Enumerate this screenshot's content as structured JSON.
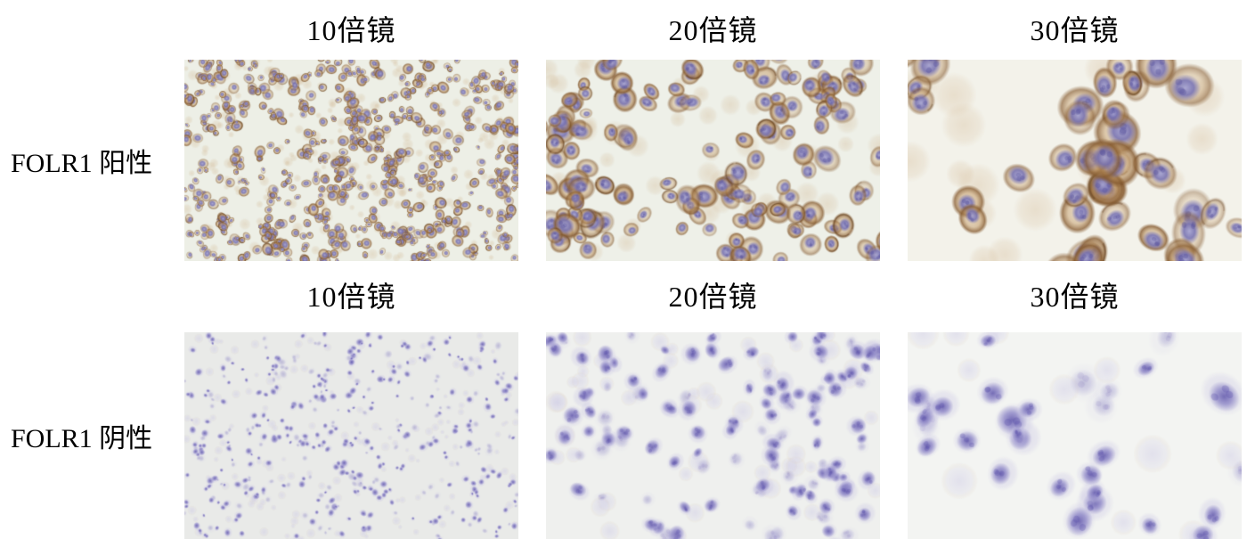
{
  "figure": {
    "rows": [
      {
        "row_label": "FOLR1 阳性",
        "stain": "positive",
        "column_headers": [
          "10倍镜",
          "20倍镜",
          "30倍镜"
        ],
        "panels": [
          {
            "magnification": "10倍镜",
            "stain": "positive",
            "background": "#edefe6",
            "render": {
              "cell_count": 620,
              "min_radius": 3,
              "max_radius": 7,
              "cluster": 0.45,
              "seed": 11
            }
          },
          {
            "magnification": "20倍镜",
            "stain": "positive",
            "background": "#eef0e8",
            "render": {
              "cell_count": 140,
              "min_radius": 8,
              "max_radius": 15,
              "cluster": 0.5,
              "seed": 22
            }
          },
          {
            "magnification": "30倍镜",
            "stain": "positive",
            "background": "#f3f2ea",
            "render": {
              "cell_count": 44,
              "min_radius": 15,
              "max_radius": 26,
              "cluster": 0.5,
              "seed": 35
            }
          }
        ]
      },
      {
        "row_label": "FOLR1 阴性",
        "stain": "negative",
        "column_headers": [
          "10倍镜",
          "20倍镜",
          "30倍镜"
        ],
        "panels": [
          {
            "magnification": "10倍镜",
            "stain": "negative",
            "background": "#e9eae8",
            "render": {
              "cell_count": 430,
              "min_radius": 2.5,
              "max_radius": 5.5,
              "cluster": 0.4,
              "seed": 44
            },
            "background_note": ""
          },
          {
            "magnification": "20倍镜",
            "stain": "negative",
            "background": "#eff0ee",
            "render": {
              "cell_count": 125,
              "min_radius": 7,
              "max_radius": 13,
              "cluster": 0.45,
              "seed": 55
            }
          },
          {
            "magnification": "30倍镜",
            "stain": "negative",
            "background": "#f3f4f2",
            "render": {
              "cell_count": 30,
              "min_radius": 13,
              "max_radius": 23,
              "cluster": 0.45,
              "seed": 66
            }
          }
        ]
      }
    ],
    "stain_colors": {
      "membrane_brown": "#875c31",
      "cytoplasm_tan": "#c39a66",
      "dark_brown": "#5e3d1d",
      "nucleus_blue": "#7470b4",
      "nucleus_light": "#a5a3d2",
      "nucleus_dark": "#55509c",
      "negative_nucleus": "#8b84c6",
      "negative_nucleus_dark": "#5a50a8",
      "negative_halo": "#c9c5e4"
    }
  }
}
